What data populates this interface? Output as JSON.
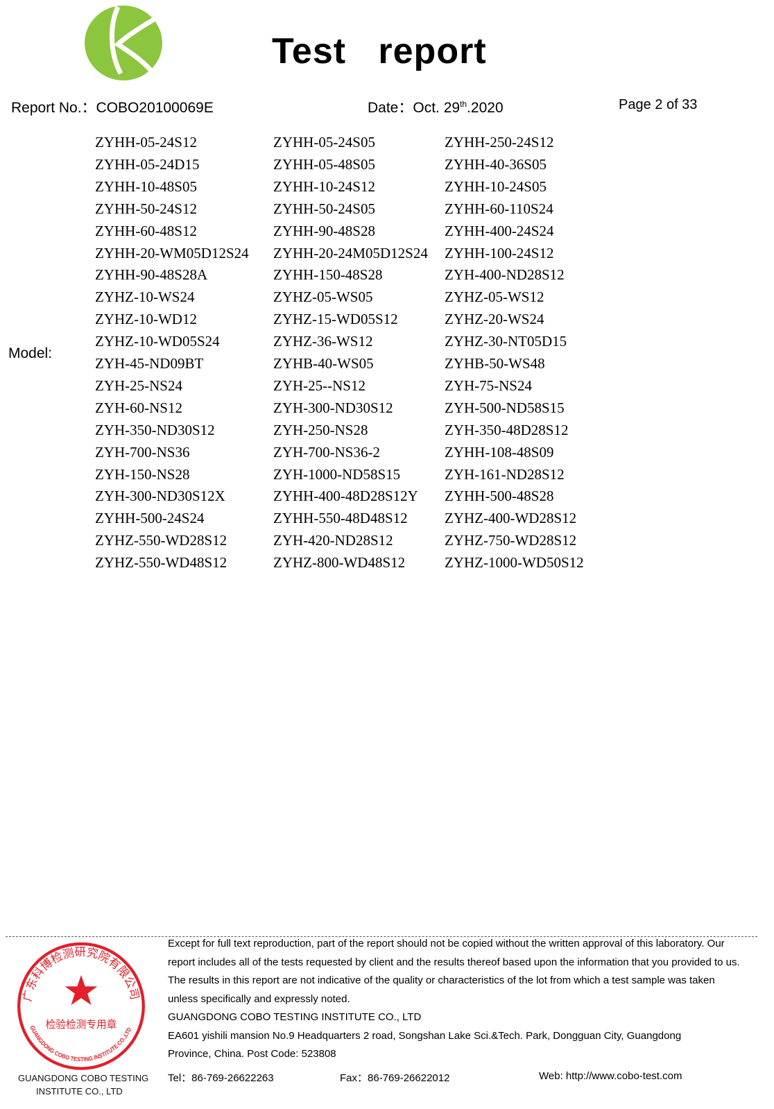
{
  "header": {
    "title": "Test   report",
    "report_no": "Report No.：COBO20100069E",
    "date_prefix": "Date：Oct. 29",
    "date_sup": "th",
    "date_suffix": ".2020",
    "page": "Page 2 of 33"
  },
  "logo": {
    "color": "#8cc63f"
  },
  "model_label": "Model:",
  "models": [
    [
      "ZYHH-05-24S12",
      "ZYHH-05-24S05",
      "ZYHH-250-24S12"
    ],
    [
      "ZYHH-05-24D15",
      "ZYHH-05-48S05",
      "ZYHH-40-36S05"
    ],
    [
      "ZYHH-10-48S05",
      "ZYHH-10-24S12",
      "ZYHH-10-24S05"
    ],
    [
      "ZYHH-50-24S12",
      "ZYHH-50-24S05",
      "ZYHH-60-110S24"
    ],
    [
      "ZYHH-60-48S12",
      "ZYHH-90-48S28",
      "ZYHH-400-24S24"
    ],
    [
      "ZYHH-20-WM05D12S24",
      "ZYHH-20-24M05D12S24",
      "ZYHH-100-24S12"
    ],
    [
      "ZYHH-90-48S28A",
      "ZYHH-150-48S28",
      "ZYH-400-ND28S12"
    ],
    [
      "ZYHZ-10-WS24",
      "ZYHZ-05-WS05",
      "ZYHZ-05-WS12"
    ],
    [
      "ZYHZ-10-WD12",
      "ZYHZ-15-WD05S12",
      "ZYHZ-20-WS24"
    ],
    [
      "ZYHZ-10-WD05S24",
      "ZYHZ-36-WS12",
      "ZYHZ-30-NT05D15"
    ],
    [
      "ZYH-45-ND09BT",
      "ZYHB-40-WS05",
      "ZYHB-50-WS48"
    ],
    [
      "ZYH-25-NS24",
      "ZYH-25--NS12",
      "ZYH-75-NS24"
    ],
    [
      "ZYH-60-NS12",
      "ZYH-300-ND30S12",
      "ZYH-500-ND58S15"
    ],
    [
      "ZYH-350-ND30S12",
      "ZYH-250-NS28",
      "ZYH-350-48D28S12"
    ],
    [
      "ZYH-700-NS36",
      "ZYH-700-NS36-2",
      "ZYHH-108-48S09"
    ],
    [
      "ZYH-150-NS28",
      "ZYH-1000-ND58S15",
      "ZYH-161-ND28S12"
    ],
    [
      "ZYH-300-ND30S12X",
      "ZYHH-400-48D28S12Y",
      "ZYHH-500-48S28"
    ],
    [
      "ZYHH-500-24S24",
      "ZYHH-550-48D48S12",
      "ZYHZ-400-WD28S12"
    ],
    [
      "ZYHZ-550-WD28S12",
      "ZYH-420-ND28S12",
      "ZYHZ-750-WD28S12"
    ],
    [
      "ZYHZ-550-WD48S12",
      "ZYHZ-800-WD48S12",
      "ZYHZ-1000-WD50S12"
    ]
  ],
  "footer": {
    "lines": [
      "Except for full text reproduction, part of the report should not be copied without the written approval of this laboratory. Our",
      "report includes all of the tests requested by client and the results thereof based upon the information that you provided to us.",
      "The results in this report are not indicative of the quality or characteristics of the lot from which a test sample was taken",
      "unless specifically and expressly noted.",
      "GUANGDONG COBO TESTING INSTITUTE CO., LTD",
      "EA601 yishili mansion No.9 Headquarters 2 road, Songshan Lake Sci.&Tech. Park, Dongguan City, Guangdong",
      "Province, China. Post Code: 523808"
    ],
    "tel": "Tel：86-769-26622263",
    "fax": "Fax：86-769-26622012",
    "web": "Web: http://www.cobo-test.com",
    "stamp_overlay_1": "GUANGDONG COBO TESTING",
    "stamp_overlay_2": "INSTITUTE CO., LTD"
  },
  "stamp": {
    "color": "#e0202a",
    "arc_cn": "广东科博检测研究院有限公司",
    "center_cn": "检验检测专用章",
    "arc_en": "GUANGDONG COBO TESTING INSTITUTE CO.,LTD"
  }
}
